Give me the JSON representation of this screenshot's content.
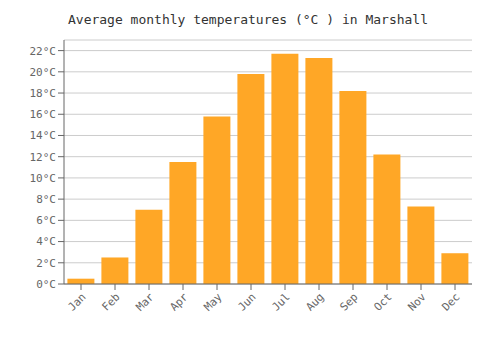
{
  "chart_data": {
    "type": "bar",
    "title": "Average monthly temperatures (°C ) in Marshall",
    "categories": [
      "Jan",
      "Feb",
      "Mar",
      "Apr",
      "May",
      "Jun",
      "Jul",
      "Aug",
      "Sep",
      "Oct",
      "Nov",
      "Dec"
    ],
    "values": [
      0.5,
      2.5,
      7.0,
      11.5,
      15.8,
      19.8,
      21.7,
      21.3,
      18.2,
      12.2,
      7.3,
      2.9
    ],
    "color": "#FFA726",
    "ylim": [
      0,
      23
    ],
    "yticks": [
      {
        "value": 0,
        "label": "0°C"
      },
      {
        "value": 2,
        "label": "2°C"
      },
      {
        "value": 4,
        "label": "4°C"
      },
      {
        "value": 6,
        "label": "6°C"
      },
      {
        "value": 8,
        "label": "8°C"
      },
      {
        "value": 10,
        "label": "10°C"
      },
      {
        "value": 12,
        "label": "12°C"
      },
      {
        "value": 14,
        "label": "14°C"
      },
      {
        "value": 16,
        "label": "16°C"
      },
      {
        "value": 18,
        "label": "18°C"
      },
      {
        "value": 20,
        "label": "20°C"
      },
      {
        "value": 22,
        "label": "22°C"
      }
    ],
    "grid": true
  }
}
